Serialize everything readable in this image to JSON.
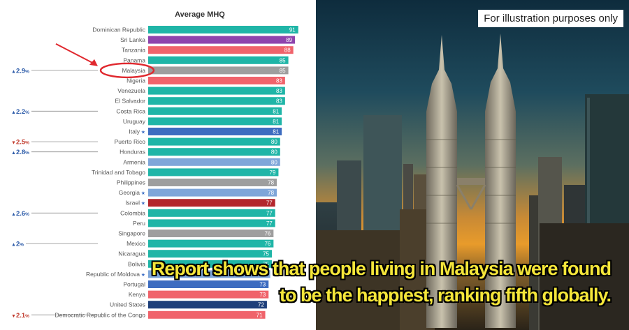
{
  "chart_data": {
    "type": "bar",
    "title": "Average MHQ",
    "xlim": [
      0,
      100
    ],
    "bar_colors": {
      "teal": "#1fb5a7",
      "purple": "#8e44ad",
      "coral": "#f0636b",
      "gray": "#9e9e9e",
      "blue": "#3d6cc0",
      "lightblue": "#7fa6d9",
      "darkred": "#b3272d",
      "navy": "#1e3f7a"
    },
    "bars": [
      {
        "category": "Dominican Republic",
        "value": 91,
        "color": "teal"
      },
      {
        "category": "Sri Lanka",
        "value": 89,
        "color": "purple"
      },
      {
        "category": "Tanzania",
        "value": 88,
        "color": "coral"
      },
      {
        "category": "Panama",
        "value": 85,
        "color": "teal"
      },
      {
        "category": "Malaysia",
        "value": 85,
        "color": "gray"
      },
      {
        "category": "Nigeria",
        "value": 83,
        "color": "coral"
      },
      {
        "category": "Venezuela",
        "value": 83,
        "color": "teal"
      },
      {
        "category": "El Salvador",
        "value": 83,
        "color": "teal"
      },
      {
        "category": "Costa Rica",
        "value": 81,
        "color": "teal"
      },
      {
        "category": "Uruguay",
        "value": 81,
        "color": "teal"
      },
      {
        "category": "Italy",
        "value": 81,
        "color": "blue",
        "star": true
      },
      {
        "category": "Puerto Rico",
        "value": 80,
        "color": "teal"
      },
      {
        "category": "Honduras",
        "value": 80,
        "color": "teal"
      },
      {
        "category": "Armenia",
        "value": 80,
        "color": "lightblue"
      },
      {
        "category": "Trinidad and Tobago",
        "value": 79,
        "color": "teal"
      },
      {
        "category": "Philippines",
        "value": 78,
        "color": "gray"
      },
      {
        "category": "Georgia",
        "value": 78,
        "color": "lightblue",
        "star": true
      },
      {
        "category": "Israel",
        "value": 77,
        "color": "darkred",
        "star": true
      },
      {
        "category": "Colombia",
        "value": 77,
        "color": "teal"
      },
      {
        "category": "Peru",
        "value": 77,
        "color": "teal"
      },
      {
        "category": "Singapore",
        "value": 76,
        "color": "gray"
      },
      {
        "category": "Mexico",
        "value": 76,
        "color": "teal"
      },
      {
        "category": "Nicaragua",
        "value": 75,
        "color": "teal"
      },
      {
        "category": "Bolivia",
        "value": 75,
        "color": "teal"
      },
      {
        "category": "Republic of Moldova",
        "value": 74,
        "color": "lightblue",
        "star": true
      },
      {
        "category": "Portugal",
        "value": 73,
        "color": "blue"
      },
      {
        "category": "Kenya",
        "value": 73,
        "color": "coral"
      },
      {
        "category": "United States",
        "value": 72,
        "color": "navy"
      },
      {
        "category": "Democratic Republic of the Congo",
        "value": 71,
        "color": "coral"
      }
    ],
    "changes": [
      {
        "category": "Malaysia",
        "value": "2.9",
        "unit": "%",
        "direction": "up",
        "color": "#2b5aa8"
      },
      {
        "category": "Costa Rica",
        "value": "2.2",
        "unit": "%",
        "direction": "up",
        "color": "#2b5aa8"
      },
      {
        "category": "Puerto Rico",
        "value": "2.5",
        "unit": "%",
        "direction": "down",
        "color": "#c0392b"
      },
      {
        "category": "Honduras",
        "value": "2.8",
        "unit": "%",
        "direction": "up",
        "color": "#2b5aa8"
      },
      {
        "category": "Colombia",
        "value": "2.6",
        "unit": "%",
        "direction": "up",
        "color": "#2b5aa8"
      },
      {
        "category": "Mexico",
        "value": "2",
        "unit": "%",
        "direction": "up",
        "color": "#2b5aa8"
      },
      {
        "category": "Democratic Republic of the Congo",
        "value": "2.1",
        "unit": "%",
        "direction": "down",
        "color": "#c0392b"
      }
    ],
    "highlight": {
      "category": "Malaysia",
      "color": "#e0282e"
    }
  },
  "photo": {
    "note": "For illustration purposes only",
    "caption_line1": "Report shows that people living in Malaysia were found",
    "caption_line2": "to be the happiest, ranking fifth globally."
  }
}
